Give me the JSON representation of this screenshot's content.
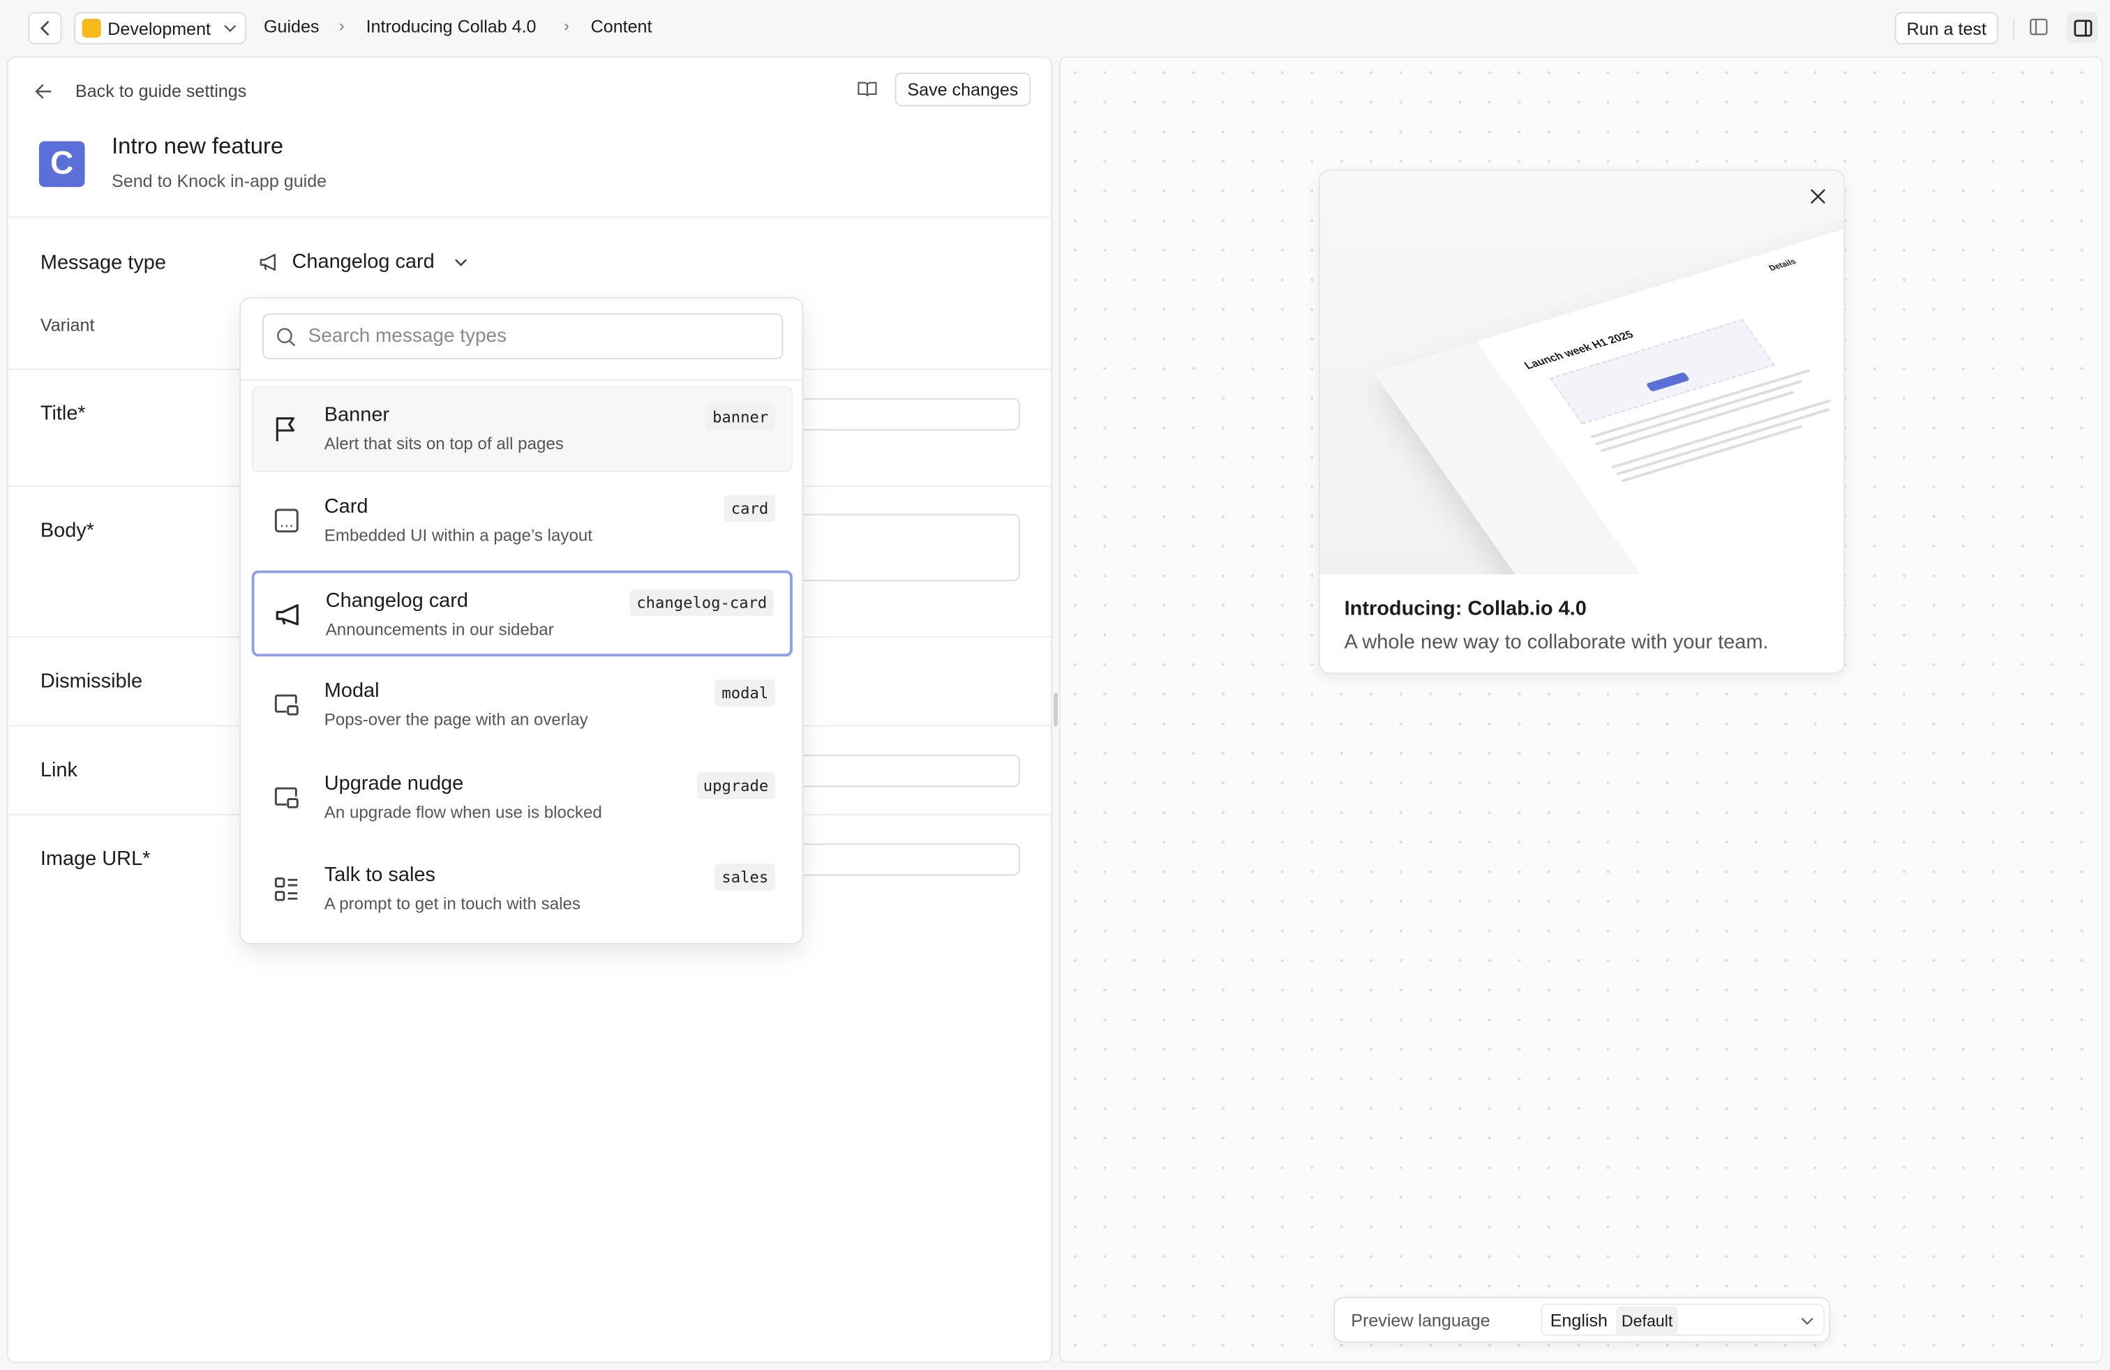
{
  "topbar": {
    "environment": "Development",
    "breadcrumbs": [
      "Guides",
      "Introducing Collab 4.0",
      "Content"
    ],
    "run_test_label": "Run a test",
    "env_color": "#f5b91a"
  },
  "editor": {
    "back_label": "Back to guide settings",
    "save_label": "Save changes",
    "channel_title": "Intro new feature",
    "channel_subtitle": "Send to Knock in-app guide",
    "logo_letter": "C",
    "logo_color": "#5a6fd8",
    "fields": {
      "message_type_label": "Message type",
      "message_type_value": "Changelog card",
      "variant_label": "Variant",
      "title_label": "Title*",
      "body_label": "Body*",
      "dismissible_label": "Dismissible",
      "link_label": "Link",
      "image_url_label": "Image URL*"
    }
  },
  "dropdown": {
    "search_placeholder": "Search message types",
    "selected_border_color": "#8da0ea",
    "items": [
      {
        "title": "Banner",
        "desc": "Alert that sits on top of all pages",
        "key": "banner",
        "icon": "flag-icon"
      },
      {
        "title": "Card",
        "desc": "Embedded UI within a page’s layout",
        "key": "card",
        "icon": "card-icon"
      },
      {
        "title": "Changelog card",
        "desc": "Announcements in our sidebar",
        "key": "changelog-card",
        "icon": "megaphone-icon"
      },
      {
        "title": "Modal",
        "desc": "Pops-over the page with an overlay",
        "key": "modal",
        "icon": "modal-icon"
      },
      {
        "title": "Upgrade nudge",
        "desc": "An upgrade flow when use is blocked",
        "key": "upgrade",
        "icon": "modal-icon"
      },
      {
        "title": "Talk to sales",
        "desc": "A prompt to get in touch with sales",
        "key": "sales",
        "icon": "list-icon"
      }
    ]
  },
  "preview": {
    "card_title": "Introducing: Collab.io 4.0",
    "card_body": "A whole new way to collaborate with your team.",
    "image_heading": "Launch week H1 2025",
    "image_details": "Details",
    "language_label": "Preview language",
    "language_value": "English",
    "language_badge": "Default"
  }
}
